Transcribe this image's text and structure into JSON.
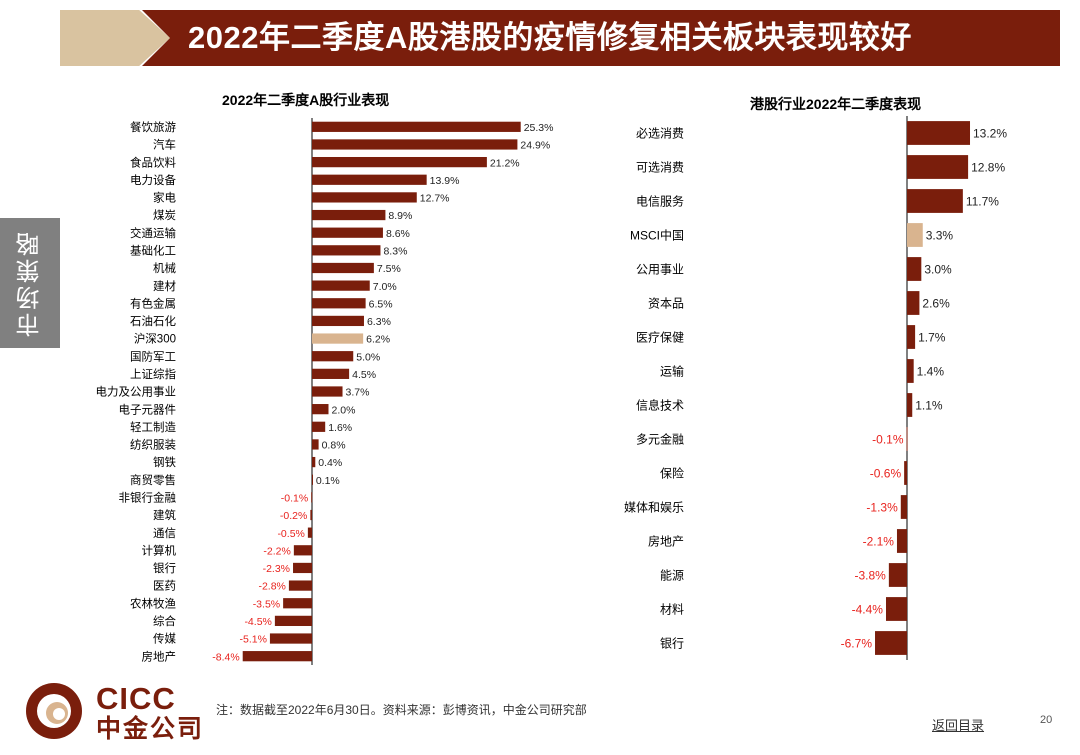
{
  "header": {
    "title": "2022年二季度A股港股的疫情修复相关板块表现较好"
  },
  "side_tab": {
    "label": "市场策略"
  },
  "colors": {
    "primary": "#7a1e0c",
    "highlight": "#d9b48f",
    "negative_label": "#e8231e",
    "side_tab": "#808080"
  },
  "chart_data": [
    {
      "type": "bar",
      "orientation": "horizontal",
      "title": "2022年二季度A股行业表现",
      "value_suffix": "%",
      "xlim": [
        -8.4,
        25.3
      ],
      "highlight_category": "沪深300",
      "categories": [
        "餐饮旅游",
        "汽车",
        "食品饮料",
        "电力设备",
        "家电",
        "煤炭",
        "交通运输",
        "基础化工",
        "机械",
        "建材",
        "有色金属",
        "石油石化",
        "沪深300",
        "国防军工",
        "上证综指",
        "电力及公用事业",
        "电子元器件",
        "轻工制造",
        "纺织服装",
        "钢铁",
        "商贸零售",
        "非银行金融",
        "建筑",
        "通信",
        "计算机",
        "银行",
        "医药",
        "农林牧渔",
        "综合",
        "传媒",
        "房地产"
      ],
      "values": [
        25.3,
        24.9,
        21.2,
        13.9,
        12.7,
        8.9,
        8.6,
        8.3,
        7.5,
        7.0,
        6.5,
        6.3,
        6.2,
        5.0,
        4.5,
        3.7,
        2.0,
        1.6,
        0.8,
        0.4,
        0.1,
        -0.1,
        -0.2,
        -0.5,
        -2.2,
        -2.3,
        -2.8,
        -3.5,
        -4.5,
        -5.1,
        -8.4
      ],
      "labels": [
        "25.3%",
        "24.9%",
        "21.2%",
        "13.9%",
        "12.7%",
        "8.9%",
        "8.6%",
        "8.3%",
        "7.5%",
        "7.0%",
        "6.5%",
        "6.3%",
        "6.2%",
        "5.0%",
        "4.5%",
        "3.7%",
        "2.0%",
        "1.6%",
        "0.8%",
        "0.4%",
        "0.1%",
        "-0.1%",
        "-0.2%",
        "-0.5%",
        "-2.2%",
        "-2.3%",
        "-2.8%",
        "-3.5%",
        "-4.5%",
        "-5.1%",
        "-8.4%"
      ]
    },
    {
      "type": "bar",
      "orientation": "horizontal",
      "title": "港股行业2022年二季度表现",
      "value_suffix": "%",
      "xlim": [
        -6.7,
        13.2
      ],
      "highlight_category": "MSCI中国",
      "categories": [
        "必选消费",
        "可选消费",
        "电信服务",
        "MSCI中国",
        "公用事业",
        "资本品",
        "医疗保健",
        "运输",
        "信息技术",
        "多元金融",
        "保险",
        "媒体和娱乐",
        "房地产",
        "能源",
        "材料",
        "银行"
      ],
      "values": [
        13.2,
        12.8,
        11.7,
        3.3,
        3.0,
        2.6,
        1.7,
        1.4,
        1.1,
        -0.1,
        -0.6,
        -1.3,
        -2.1,
        -3.8,
        -4.4,
        -6.7
      ],
      "labels": [
        "13.2%",
        "12.8%",
        "11.7%",
        "3.3%",
        "3.0%",
        "2.6%",
        "1.7%",
        "1.4%",
        "1.1%",
        "-0.1%",
        "-0.6%",
        "-1.3%",
        "-2.1%",
        "-3.8%",
        "-4.4%",
        "-6.7%"
      ]
    }
  ],
  "footer": {
    "logo_latin": "CICC",
    "logo_cn": "中金公司",
    "note": "注：数据截至2022年6月30日。资料来源：彭博资讯，中金公司研究部",
    "back_link": "返回目录",
    "page_number": "20"
  }
}
